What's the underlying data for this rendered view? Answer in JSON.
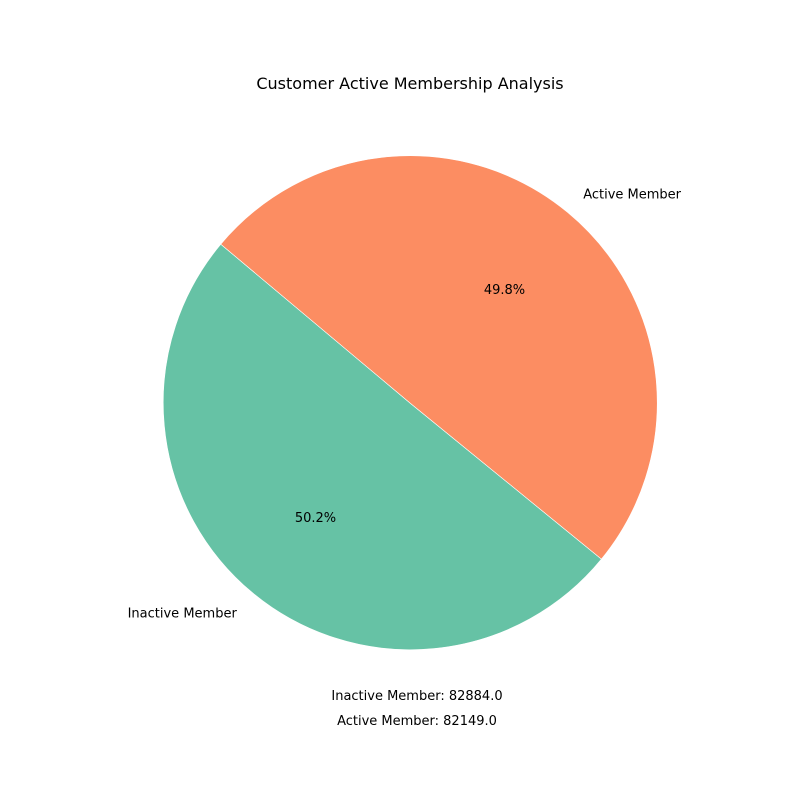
{
  "chart_data": {
    "type": "pie",
    "title": "Customer Active Membership Analysis",
    "slices": [
      {
        "label": "Inactive Member",
        "value": 82884.0,
        "percent_label": "50.2%",
        "color": "#66c2a5"
      },
      {
        "label": "Active Member",
        "value": 82149.0,
        "percent_label": "49.8%",
        "color": "#fc8d62"
      }
    ],
    "start_angle_deg": 140,
    "footer_lines": [
      "Inactive Member: 82884.0",
      "Active Member: 82149.0"
    ]
  }
}
